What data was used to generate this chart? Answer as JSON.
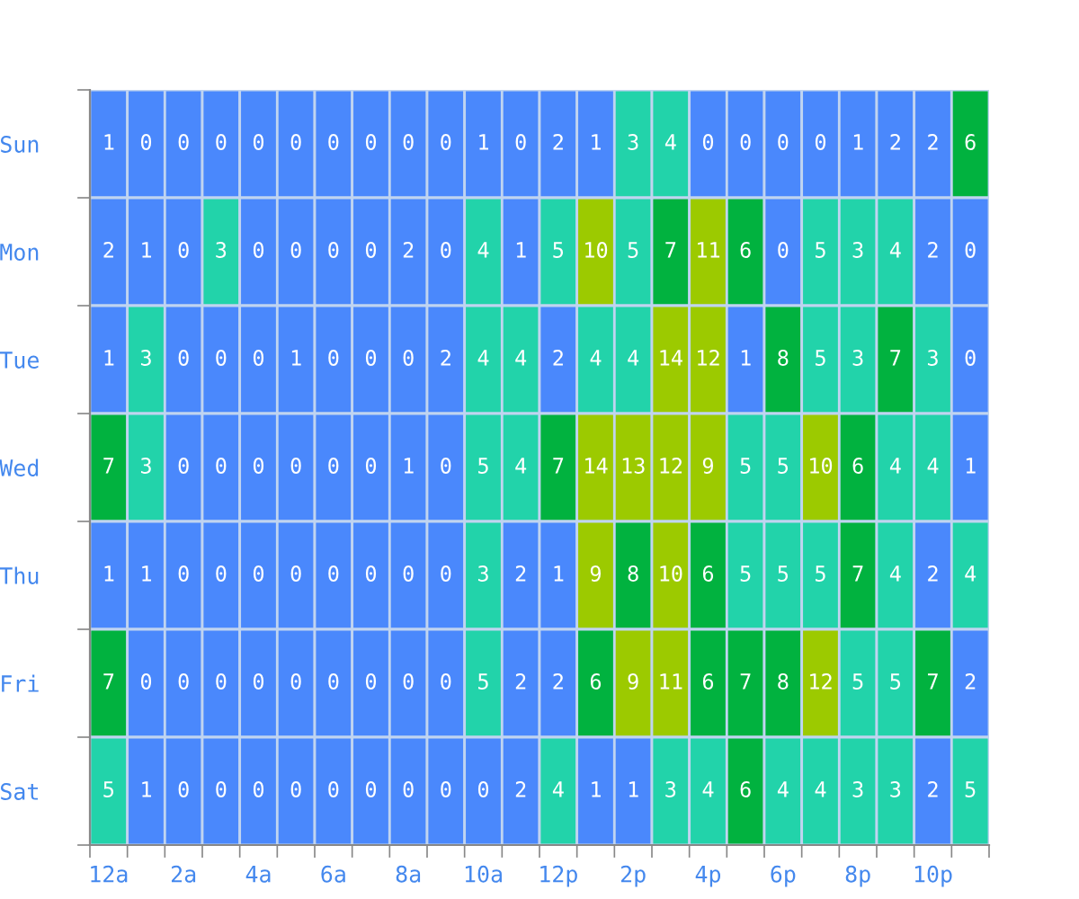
{
  "chart_data": {
    "type": "heatmap",
    "categories": [
      "12a",
      null,
      "2a",
      null,
      "4a",
      null,
      "6a",
      null,
      "8a",
      null,
      "10a",
      null,
      "12p",
      null,
      "2p",
      null,
      "4p",
      null,
      "6p",
      null,
      "8p",
      null,
      "10p",
      null
    ],
    "y_categories": [
      "Sun",
      "Mon",
      "Tue",
      "Wed",
      "Thu",
      "Fri",
      "Sat"
    ],
    "cells": [
      [
        1,
        0,
        0,
        0,
        0,
        0,
        0,
        0,
        0,
        0,
        1,
        0,
        2,
        1,
        3,
        4,
        0,
        0,
        0,
        0,
        1,
        2,
        2,
        6
      ],
      [
        2,
        1,
        0,
        3,
        0,
        0,
        0,
        0,
        2,
        0,
        4,
        1,
        5,
        10,
        5,
        7,
        11,
        6,
        0,
        5,
        3,
        4,
        2,
        0
      ],
      [
        1,
        3,
        0,
        0,
        0,
        1,
        0,
        0,
        0,
        2,
        4,
        4,
        2,
        4,
        4,
        14,
        12,
        1,
        8,
        5,
        3,
        7,
        3,
        0
      ],
      [
        7,
        3,
        0,
        0,
        0,
        0,
        0,
        0,
        1,
        0,
        5,
        4,
        7,
        14,
        13,
        12,
        9,
        5,
        5,
        10,
        6,
        4,
        4,
        1
      ],
      [
        1,
        1,
        0,
        0,
        0,
        0,
        0,
        0,
        0,
        0,
        3,
        2,
        1,
        9,
        8,
        10,
        6,
        5,
        5,
        5,
        7,
        4,
        2,
        4
      ],
      [
        7,
        0,
        0,
        0,
        0,
        0,
        0,
        0,
        0,
        0,
        5,
        2,
        2,
        6,
        9,
        11,
        6,
        7,
        8,
        12,
        5,
        5,
        7,
        2
      ],
      [
        5,
        1,
        0,
        0,
        0,
        0,
        0,
        0,
        0,
        0,
        0,
        2,
        4,
        1,
        1,
        3,
        4,
        6,
        4,
        4,
        3,
        3,
        2,
        5
      ]
    ],
    "colors": [
      [
        "#4a88fc",
        "#4a88fc",
        "#4a88fc",
        "#4a88fc",
        "#4a88fc",
        "#4a88fc",
        "#4a88fc",
        "#4a88fc",
        "#4a88fc",
        "#4a88fc",
        "#4a88fc",
        "#4a88fc",
        "#4a88fc",
        "#4a88fc",
        "#22d3aa",
        "#22d3aa",
        "#4a88fc",
        "#4a88fc",
        "#4a88fc",
        "#4a88fc",
        "#4a88fc",
        "#4a88fc",
        "#4a88fc",
        "#01b23f"
      ],
      [
        "#4a88fc",
        "#4a88fc",
        "#4a88fc",
        "#22d3aa",
        "#4a88fc",
        "#4a88fc",
        "#4a88fc",
        "#4a88fc",
        "#4a88fc",
        "#4a88fc",
        "#22d3aa",
        "#4a88fc",
        "#22d3aa",
        "#9cca00",
        "#22d3aa",
        "#01b23f",
        "#9cca00",
        "#01b23f",
        "#4a88fc",
        "#22d3aa",
        "#22d3aa",
        "#22d3aa",
        "#4a88fc",
        "#4a88fc"
      ],
      [
        "#4a88fc",
        "#22d3aa",
        "#4a88fc",
        "#4a88fc",
        "#4a88fc",
        "#4a88fc",
        "#4a88fc",
        "#4a88fc",
        "#4a88fc",
        "#4a88fc",
        "#22d3aa",
        "#22d3aa",
        "#4a88fc",
        "#22d3aa",
        "#22d3aa",
        "#9cca00",
        "#9cca00",
        "#4a88fc",
        "#01b23f",
        "#22d3aa",
        "#22d3aa",
        "#01b23f",
        "#22d3aa",
        "#4a88fc"
      ],
      [
        "#01b23f",
        "#22d3aa",
        "#4a88fc",
        "#4a88fc",
        "#4a88fc",
        "#4a88fc",
        "#4a88fc",
        "#4a88fc",
        "#4a88fc",
        "#4a88fc",
        "#22d3aa",
        "#22d3aa",
        "#01b23f",
        "#9cca00",
        "#9cca00",
        "#9cca00",
        "#9cca00",
        "#22d3aa",
        "#22d3aa",
        "#9cca00",
        "#01b23f",
        "#22d3aa",
        "#22d3aa",
        "#4a88fc"
      ],
      [
        "#4a88fc",
        "#4a88fc",
        "#4a88fc",
        "#4a88fc",
        "#4a88fc",
        "#4a88fc",
        "#4a88fc",
        "#4a88fc",
        "#4a88fc",
        "#4a88fc",
        "#22d3aa",
        "#4a88fc",
        "#4a88fc",
        "#9cca00",
        "#01b23f",
        "#9cca00",
        "#01b23f",
        "#22d3aa",
        "#22d3aa",
        "#22d3aa",
        "#01b23f",
        "#22d3aa",
        "#4a88fc",
        "#22d3aa"
      ],
      [
        "#01b23f",
        "#4a88fc",
        "#4a88fc",
        "#4a88fc",
        "#4a88fc",
        "#4a88fc",
        "#4a88fc",
        "#4a88fc",
        "#4a88fc",
        "#4a88fc",
        "#22d3aa",
        "#4a88fc",
        "#4a88fc",
        "#01b23f",
        "#9cca00",
        "#9cca00",
        "#01b23f",
        "#01b23f",
        "#01b23f",
        "#9cca00",
        "#22d3aa",
        "#22d3aa",
        "#01b23f",
        "#4a88fc"
      ],
      [
        "#22d3aa",
        "#4a88fc",
        "#4a88fc",
        "#4a88fc",
        "#4a88fc",
        "#4a88fc",
        "#4a88fc",
        "#4a88fc",
        "#4a88fc",
        "#4a88fc",
        "#4a88fc",
        "#4a88fc",
        "#22d3aa",
        "#4a88fc",
        "#4a88fc",
        "#22d3aa",
        "#22d3aa",
        "#01b23f",
        "#22d3aa",
        "#22d3aa",
        "#22d3aa",
        "#22d3aa",
        "#4a88fc",
        "#22d3aa"
      ]
    ],
    "data_labels": true
  }
}
